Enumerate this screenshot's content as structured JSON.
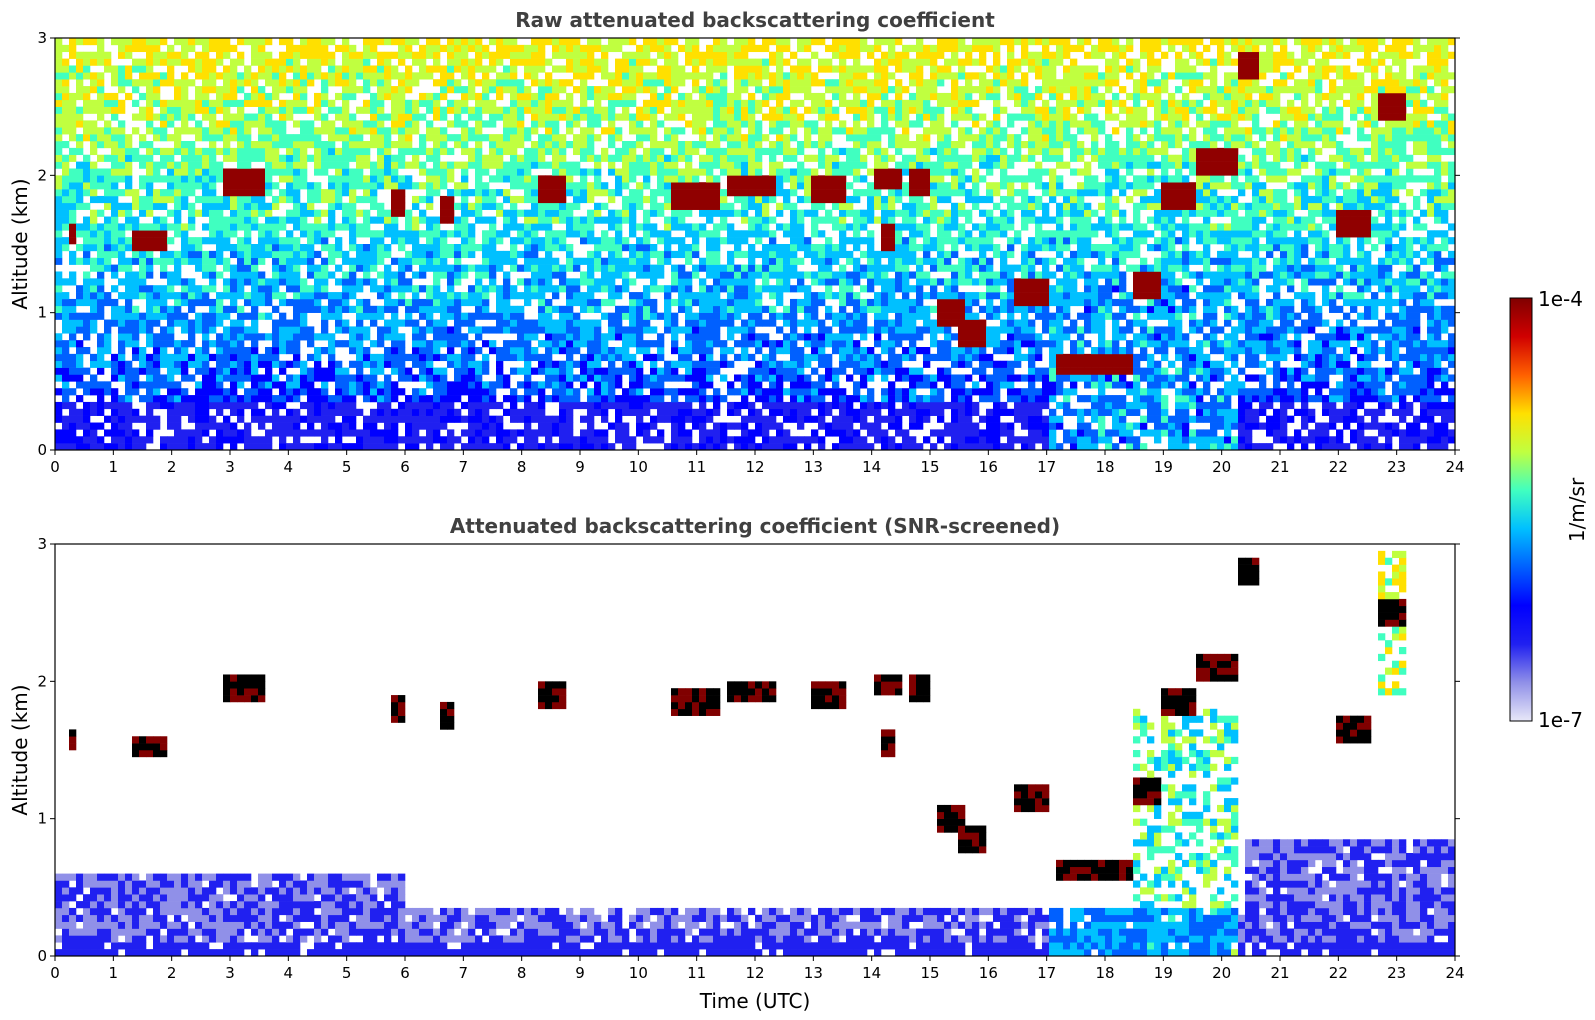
{
  "chart_data": [
    {
      "type": "heatmap",
      "title": "Raw attenuated backscattering coefficient",
      "xlabel": "",
      "ylabel": "Altitude (km)",
      "xlim": [
        0,
        24
      ],
      "ylim": [
        0,
        3
      ],
      "x_ticks": [
        "0",
        "1",
        "2",
        "3",
        "4",
        "5",
        "6",
        "7",
        "8",
        "9",
        "10",
        "11",
        "12",
        "13",
        "14",
        "15",
        "16",
        "17",
        "18",
        "19",
        "20",
        "21",
        "22",
        "23",
        "24"
      ],
      "y_ticks": [
        "0",
        "1",
        "2",
        "3"
      ],
      "screened": false
    },
    {
      "type": "heatmap",
      "title": "Attenuated backscattering coefficient (SNR-screened)",
      "xlabel": "Time (UTC)",
      "ylabel": "Altitude (km)",
      "xlim": [
        0,
        24
      ],
      "ylim": [
        0,
        3
      ],
      "x_ticks": [
        "0",
        "1",
        "2",
        "3",
        "4",
        "5",
        "6",
        "7",
        "8",
        "9",
        "10",
        "11",
        "12",
        "13",
        "14",
        "15",
        "16",
        "17",
        "18",
        "19",
        "20",
        "21",
        "22",
        "23",
        "24"
      ],
      "y_ticks": [
        "0",
        "1",
        "2",
        "3"
      ],
      "screened": true
    }
  ],
  "colorbar": {
    "max_label": "1e-4",
    "min_label": "1e-7",
    "label": "1/m/sr",
    "scale": "log",
    "colormap": [
      "#e8e8f8",
      "#9090e8",
      "#2020f0",
      "#0000ff",
      "#0060ff",
      "#00c0ff",
      "#40ffc0",
      "#c0ff40",
      "#ffe000",
      "#ff6000",
      "#d00000",
      "#800000"
    ]
  },
  "features": {
    "cloud_layers": [
      {
        "x0": 0.2,
        "x1": 0.4,
        "y": 1.57
      },
      {
        "x0": 1.3,
        "x1": 1.9,
        "y": 1.52
      },
      {
        "x0": 2.9,
        "x1": 3.6,
        "y": 1.95
      },
      {
        "x0": 5.7,
        "x1": 6.0,
        "y": 1.8
      },
      {
        "x0": 6.6,
        "x1": 6.8,
        "y": 1.75
      },
      {
        "x0": 8.3,
        "x1": 8.7,
        "y": 1.9
      },
      {
        "x0": 10.6,
        "x1": 11.4,
        "y": 1.85
      },
      {
        "x0": 11.5,
        "x1": 12.4,
        "y": 1.92
      },
      {
        "x0": 12.9,
        "x1": 13.6,
        "y": 1.9
      },
      {
        "x0": 14.0,
        "x1": 14.5,
        "y": 1.98
      },
      {
        "x0": 14.6,
        "x1": 15.0,
        "y": 1.95
      },
      {
        "x0": 14.2,
        "x1": 14.4,
        "y": 1.55
      },
      {
        "x0": 15.1,
        "x1": 15.6,
        "y": 1.0
      },
      {
        "x0": 15.5,
        "x1": 15.9,
        "y": 0.85
      },
      {
        "x0": 16.5,
        "x1": 17.0,
        "y": 1.15
      },
      {
        "x0": 17.2,
        "x1": 18.5,
        "y": 0.62
      },
      {
        "x0": 18.5,
        "x1": 19.0,
        "y": 1.2
      },
      {
        "x0": 19.0,
        "x1": 19.6,
        "y": 1.85
      },
      {
        "x0": 19.6,
        "x1": 20.3,
        "y": 2.1
      },
      {
        "x0": 20.3,
        "x1": 20.7,
        "y": 2.8
      },
      {
        "x0": 22.0,
        "x1": 22.5,
        "y": 1.65
      },
      {
        "x0": 22.7,
        "x1": 23.1,
        "y": 2.5
      }
    ]
  }
}
